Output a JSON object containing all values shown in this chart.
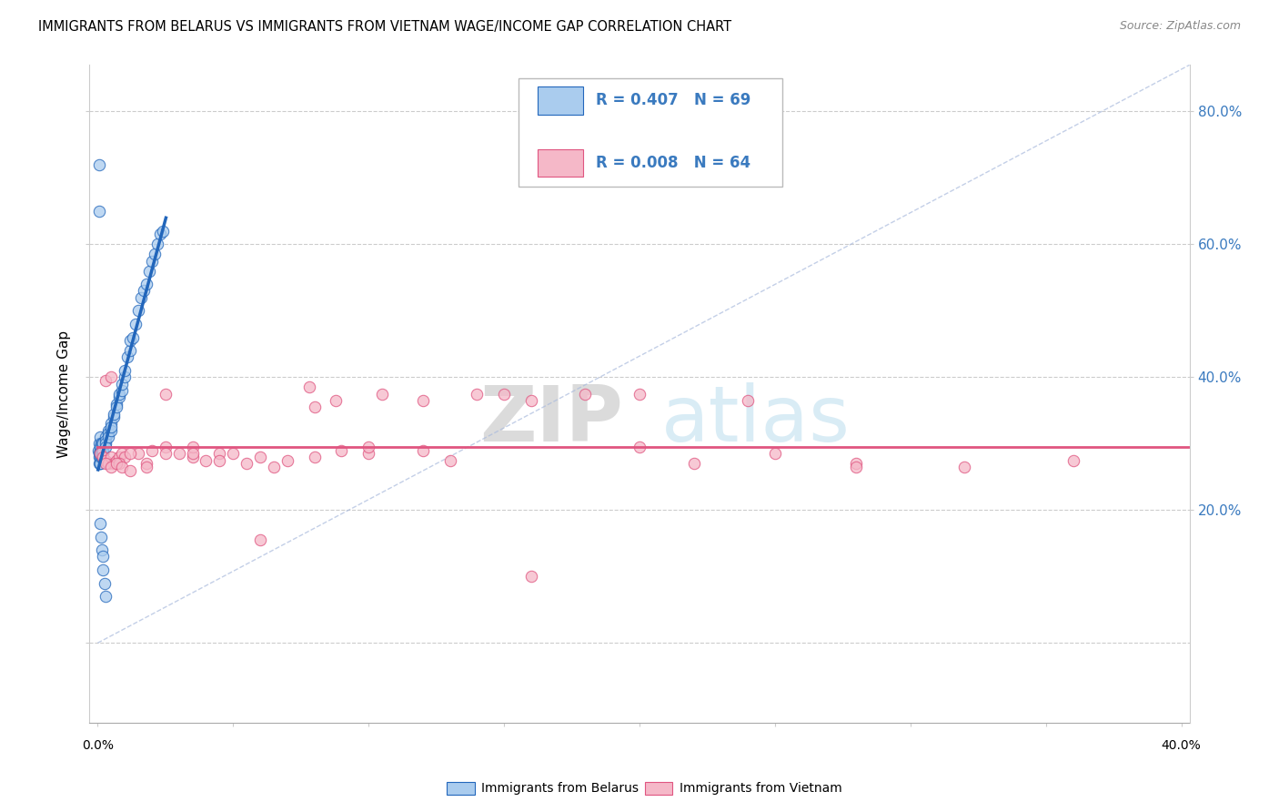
{
  "title": "IMMIGRANTS FROM BELARUS VS IMMIGRANTS FROM VIETNAM WAGE/INCOME GAP CORRELATION CHART",
  "source": "Source: ZipAtlas.com",
  "ylabel": "Wage/Income Gap",
  "R1": 0.407,
  "N1": 69,
  "R2": 0.008,
  "N2": 64,
  "watermark_zip": "ZIP",
  "watermark_atlas": "atlas",
  "color_belarus": "#aaccee",
  "color_vietnam": "#f5b8c8",
  "color_belarus_line": "#2266bb",
  "color_vietnam_line": "#e05580",
  "legend_label1": "Immigrants from Belarus",
  "legend_label2": "Immigrants from Vietnam",
  "xlim": [
    -0.003,
    0.403
  ],
  "ylim": [
    -0.12,
    0.87
  ],
  "yticks": [
    0.0,
    0.2,
    0.4,
    0.6,
    0.8
  ],
  "xticks": [
    0.0,
    0.05,
    0.1,
    0.15,
    0.2,
    0.25,
    0.3,
    0.35,
    0.4
  ],
  "belarus_x": [
    0.0003,
    0.0004,
    0.0005,
    0.0005,
    0.0007,
    0.0008,
    0.0008,
    0.0009,
    0.001,
    0.001,
    0.001,
    0.001,
    0.0012,
    0.0013,
    0.0013,
    0.0014,
    0.0015,
    0.0015,
    0.0016,
    0.0017,
    0.0018,
    0.002,
    0.002,
    0.002,
    0.002,
    0.003,
    0.003,
    0.003,
    0.003,
    0.004,
    0.004,
    0.004,
    0.005,
    0.005,
    0.005,
    0.006,
    0.006,
    0.007,
    0.007,
    0.008,
    0.008,
    0.009,
    0.009,
    0.01,
    0.01,
    0.011,
    0.012,
    0.012,
    0.013,
    0.014,
    0.015,
    0.016,
    0.017,
    0.018,
    0.019,
    0.02,
    0.021,
    0.022,
    0.023,
    0.024,
    0.0004,
    0.0006,
    0.0009,
    0.0012,
    0.0015,
    0.0018,
    0.002,
    0.0025,
    0.003
  ],
  "belarus_y": [
    0.29,
    0.285,
    0.27,
    0.3,
    0.28,
    0.27,
    0.31,
    0.29,
    0.295,
    0.28,
    0.27,
    0.285,
    0.29,
    0.28,
    0.3,
    0.29,
    0.28,
    0.285,
    0.29,
    0.3,
    0.285,
    0.3,
    0.285,
    0.28,
    0.29,
    0.31,
    0.305,
    0.3,
    0.295,
    0.32,
    0.315,
    0.31,
    0.33,
    0.32,
    0.325,
    0.34,
    0.345,
    0.36,
    0.355,
    0.37,
    0.375,
    0.38,
    0.39,
    0.4,
    0.41,
    0.43,
    0.44,
    0.455,
    0.46,
    0.48,
    0.5,
    0.52,
    0.53,
    0.54,
    0.56,
    0.575,
    0.585,
    0.6,
    0.615,
    0.62,
    0.72,
    0.65,
    0.18,
    0.16,
    0.14,
    0.13,
    0.11,
    0.09,
    0.07
  ],
  "vietnam_x": [
    0.001,
    0.002,
    0.003,
    0.004,
    0.005,
    0.006,
    0.007,
    0.008,
    0.009,
    0.01,
    0.015,
    0.02,
    0.025,
    0.03,
    0.035,
    0.04,
    0.05,
    0.06,
    0.07,
    0.08,
    0.09,
    0.1,
    0.12,
    0.14,
    0.16,
    0.18,
    0.2,
    0.22,
    0.25,
    0.28,
    0.003,
    0.005,
    0.008,
    0.012,
    0.018,
    0.025,
    0.035,
    0.045,
    0.055,
    0.065,
    0.078,
    0.088,
    0.105,
    0.12,
    0.15,
    0.003,
    0.005,
    0.007,
    0.009,
    0.012,
    0.018,
    0.025,
    0.035,
    0.045,
    0.06,
    0.08,
    0.1,
    0.13,
    0.16,
    0.2,
    0.24,
    0.28,
    0.32,
    0.36
  ],
  "vietnam_y": [
    0.285,
    0.28,
    0.275,
    0.27,
    0.28,
    0.27,
    0.275,
    0.28,
    0.285,
    0.28,
    0.285,
    0.29,
    0.295,
    0.285,
    0.28,
    0.275,
    0.285,
    0.28,
    0.275,
    0.28,
    0.29,
    0.285,
    0.29,
    0.375,
    0.365,
    0.375,
    0.295,
    0.27,
    0.285,
    0.27,
    0.27,
    0.265,
    0.27,
    0.285,
    0.27,
    0.375,
    0.295,
    0.285,
    0.27,
    0.265,
    0.385,
    0.365,
    0.375,
    0.365,
    0.375,
    0.395,
    0.4,
    0.27,
    0.265,
    0.26,
    0.265,
    0.285,
    0.285,
    0.275,
    0.155,
    0.355,
    0.295,
    0.275,
    0.1,
    0.375,
    0.365,
    0.265,
    0.265,
    0.275
  ]
}
